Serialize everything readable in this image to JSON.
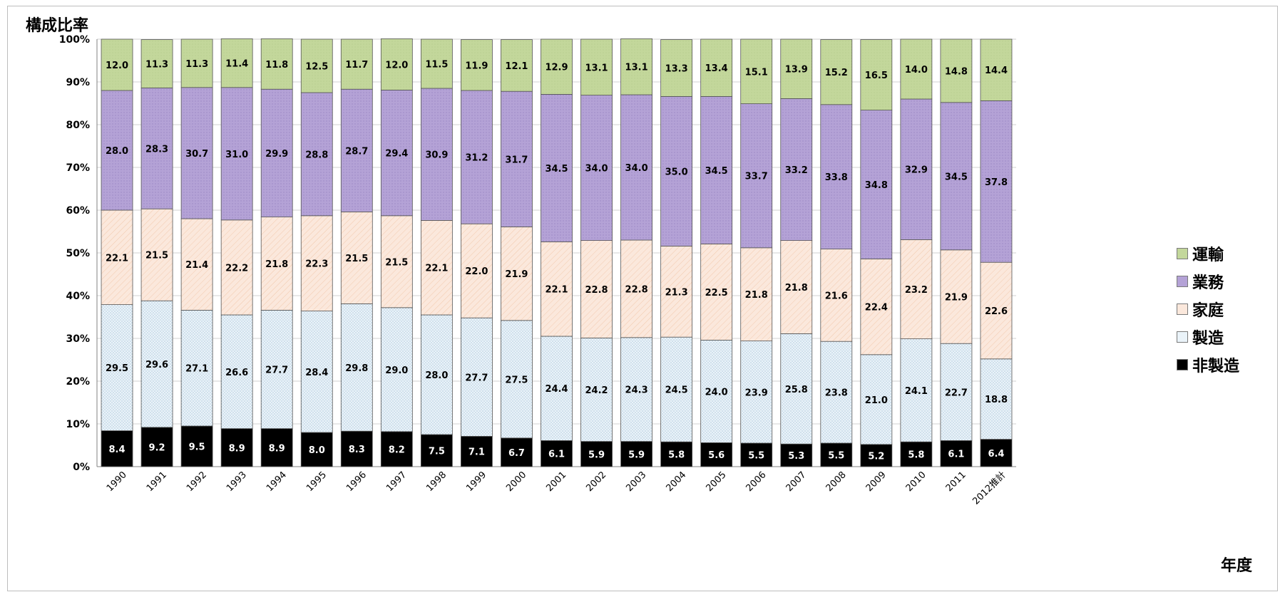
{
  "chart_data": {
    "type": "bar",
    "stacked": true,
    "title": "構成比率",
    "xlabel": "年度",
    "ylabel": "",
    "ylim": [
      0,
      100
    ],
    "yticks": [
      "0%",
      "10%",
      "20%",
      "30%",
      "40%",
      "50%",
      "60%",
      "70%",
      "80%",
      "90%",
      "100%"
    ],
    "grid": true,
    "legend_position": "right",
    "categories": [
      "1990",
      "1991",
      "1992",
      "1993",
      "1994",
      "1995",
      "1996",
      "1997",
      "1998",
      "1999",
      "2000",
      "2001",
      "2002",
      "2003",
      "2004",
      "2005",
      "2006",
      "2007",
      "2008",
      "2009",
      "2010",
      "2011",
      "2012推計"
    ],
    "series": [
      {
        "name": "非製造",
        "color": "#000000",
        "values": [
          8.4,
          9.2,
          9.5,
          8.9,
          8.9,
          8.0,
          8.3,
          8.2,
          7.5,
          7.1,
          6.7,
          6.1,
          5.9,
          5.9,
          5.8,
          5.6,
          5.5,
          5.3,
          5.5,
          5.2,
          5.8,
          6.1,
          6.4
        ]
      },
      {
        "name": "製造",
        "color": "#eaf3f9",
        "values": [
          29.5,
          29.6,
          27.1,
          26.6,
          27.7,
          28.4,
          29.8,
          29.0,
          28.0,
          27.7,
          27.5,
          24.4,
          24.2,
          24.3,
          24.5,
          24.0,
          23.9,
          25.8,
          23.8,
          21.0,
          24.1,
          22.7,
          18.8
        ]
      },
      {
        "name": "家庭",
        "color": "#fbe8dc",
        "values": [
          22.1,
          21.5,
          21.4,
          22.2,
          21.8,
          22.3,
          21.5,
          21.5,
          22.1,
          22.0,
          21.9,
          22.1,
          22.8,
          22.8,
          21.3,
          22.5,
          21.8,
          21.8,
          21.6,
          22.4,
          23.2,
          21.9,
          22.6
        ]
      },
      {
        "name": "業務",
        "color": "#b4a2d6",
        "values": [
          28.0,
          28.3,
          30.7,
          31.0,
          29.9,
          28.8,
          28.7,
          29.4,
          30.9,
          31.2,
          31.7,
          34.5,
          34.0,
          34.0,
          35.0,
          34.5,
          33.7,
          33.2,
          33.8,
          34.8,
          32.9,
          34.5,
          37.8
        ]
      },
      {
        "name": "運輸",
        "color": "#c3d79b",
        "values": [
          12.0,
          11.3,
          11.3,
          11.4,
          11.8,
          12.5,
          11.7,
          12.0,
          11.5,
          11.9,
          12.1,
          12.9,
          13.1,
          13.1,
          13.3,
          13.4,
          15.1,
          13.9,
          15.2,
          16.5,
          14.0,
          14.8,
          14.4
        ]
      }
    ],
    "legend_order": [
      "運輸",
      "業務",
      "家庭",
      "製造",
      "非製造"
    ]
  }
}
